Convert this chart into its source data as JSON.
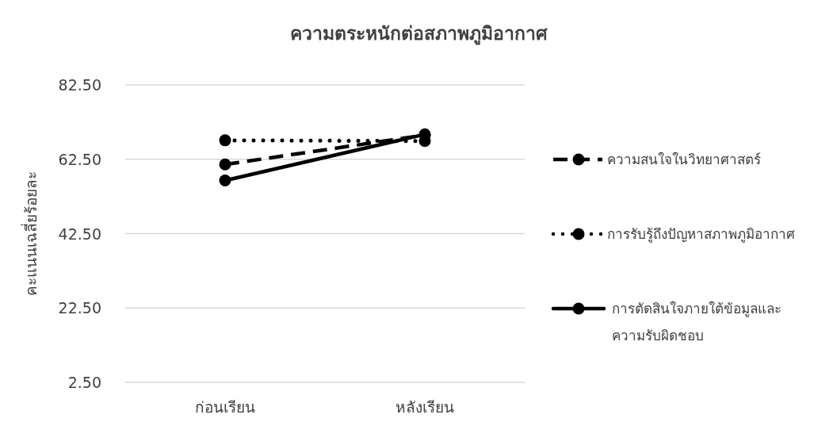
{
  "chart_data": {
    "type": "line",
    "title": "ความตระหนักต่อสภาพภูมิอากาศ",
    "ylabel": "คะแนนเฉลี่ยร้อยละ",
    "categories": [
      "ก่อนเรียน",
      "หลังเรียน"
    ],
    "series": [
      {
        "name": "ความสนใจในวิทยาศาสตร์",
        "color": "#000000",
        "line_style": "dashed",
        "values": [
          61.1,
          69.0
        ]
      },
      {
        "name": "การรับรู้ถึงปัญหาสภาพภูมิอากาศ",
        "color": "#000000",
        "line_style": "dotted",
        "values": [
          67.6,
          67.4
        ]
      },
      {
        "name": "การตัดสินใจภายใต้ข้อมูลและความรับผิดชอบ",
        "color": "#000000",
        "line_style": "solid",
        "values": [
          56.8,
          69.2
        ]
      }
    ],
    "ylim": [
      2.5,
      82.5
    ],
    "yticks": [
      {
        "value": 2.5,
        "label": "2.50"
      },
      {
        "value": 22.5,
        "label": "22.50"
      },
      {
        "value": 42.5,
        "label": "42.50"
      },
      {
        "value": 62.5,
        "label": "62.50"
      },
      {
        "value": 82.5,
        "label": "82.50"
      }
    ],
    "grid": "y",
    "legend": "right",
    "marker": "circle"
  }
}
